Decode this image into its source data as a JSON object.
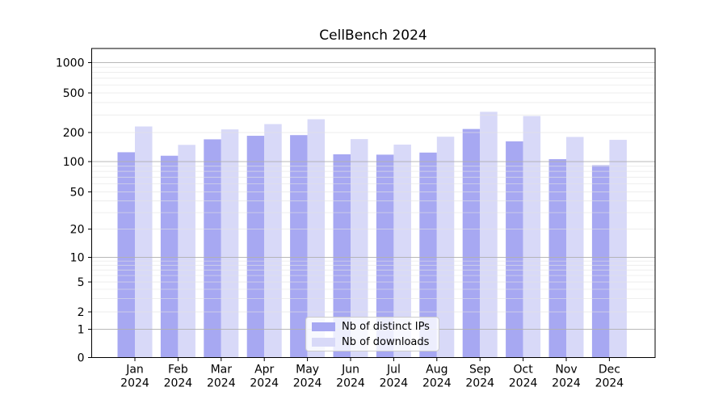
{
  "title": "CellBench 2024",
  "chart_data": {
    "type": "bar",
    "title": "CellBench 2024",
    "xlabel": "",
    "ylabel": "",
    "yscale": "log-like (asinh/symlog), linear below 1",
    "ylim": [
      0,
      1400
    ],
    "grid": "both, horizontal only; darker lines at powers of 10",
    "legend_position": "lower center, inside axes",
    "categories": [
      "Jan 2024",
      "Feb 2024",
      "Mar 2024",
      "Apr 2024",
      "May 2024",
      "Jun 2024",
      "Jul 2024",
      "Aug 2024",
      "Sep 2024",
      "Oct 2024",
      "Nov 2024",
      "Dec 2024"
    ],
    "x_ticks": [
      {
        "month": "Jan",
        "year": "2024"
      },
      {
        "month": "Feb",
        "year": "2024"
      },
      {
        "month": "Mar",
        "year": "2024"
      },
      {
        "month": "Apr",
        "year": "2024"
      },
      {
        "month": "May",
        "year": "2024"
      },
      {
        "month": "Jun",
        "year": "2024"
      },
      {
        "month": "Jul",
        "year": "2024"
      },
      {
        "month": "Aug",
        "year": "2024"
      },
      {
        "month": "Sep",
        "year": "2024"
      },
      {
        "month": "Oct",
        "year": "2024"
      },
      {
        "month": "Nov",
        "year": "2024"
      },
      {
        "month": "Dec",
        "year": "2024"
      }
    ],
    "y_ticks": [
      0,
      1,
      2,
      5,
      10,
      20,
      50,
      100,
      200,
      500,
      1000
    ],
    "y_minor_ticks": [
      3,
      4,
      6,
      7,
      8,
      9,
      30,
      40,
      60,
      70,
      80,
      90,
      300,
      400,
      600,
      700,
      800,
      900
    ],
    "series": [
      {
        "name": "Nb of distinct IPs",
        "color": "#a7a8f2",
        "values": [
          125,
          115,
          170,
          185,
          188,
          119,
          118,
          124,
          217,
          162,
          106,
          92
        ]
      },
      {
        "name": "Nb of downloads",
        "color": "#d8d9f8",
        "values": [
          230,
          149,
          215,
          243,
          272,
          171,
          150,
          181,
          323,
          293,
          180,
          168
        ]
      }
    ],
    "colors": {
      "major_grid": "#b1b1b1",
      "minor_grid": "#e3e3e3",
      "axis": "#000000",
      "text": "#000000"
    }
  },
  "legend": {
    "items": [
      {
        "label": "Nb of distinct IPs"
      },
      {
        "label": "Nb of downloads"
      }
    ]
  }
}
